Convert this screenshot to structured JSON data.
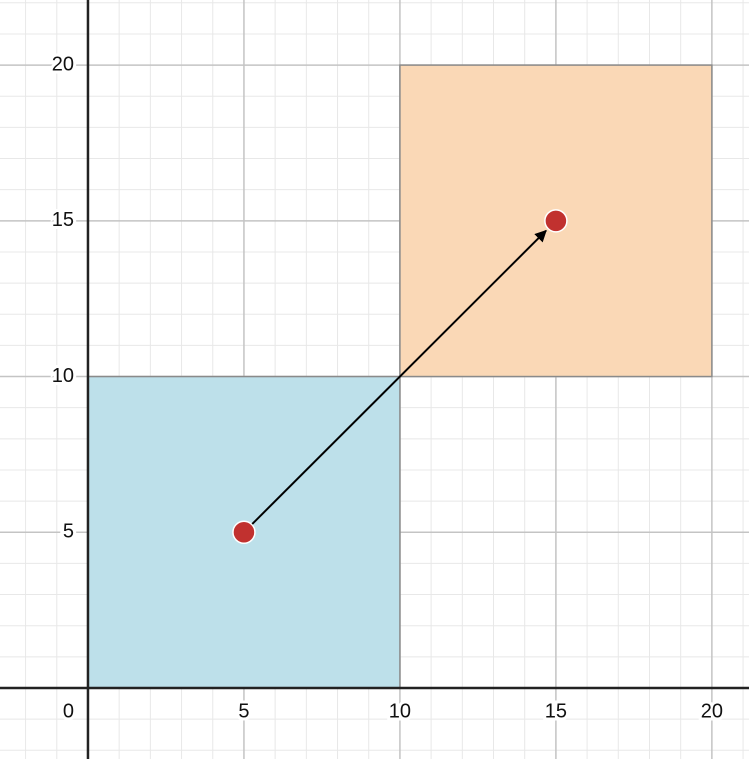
{
  "chart_data": {
    "type": "scatter",
    "xlim": [
      -2.82,
      21.19
    ],
    "ylim": [
      -2.28,
      22.09
    ],
    "xticks": [
      0,
      5,
      10,
      15,
      20
    ],
    "yticks": [
      5,
      10,
      15,
      20
    ],
    "grid": true,
    "rects": [
      {
        "x": [
          0,
          10
        ],
        "y": [
          0,
          10
        ],
        "color": "#bde0ea"
      },
      {
        "x": [
          10,
          20
        ],
        "y": [
          10,
          20
        ],
        "color": "#fad8b6"
      }
    ],
    "points": {
      "x": [
        5,
        15
      ],
      "y": [
        5,
        15
      ],
      "color": "#c1312f"
    },
    "arrow": {
      "from": [
        5,
        5
      ],
      "to": [
        15,
        15
      ]
    }
  }
}
